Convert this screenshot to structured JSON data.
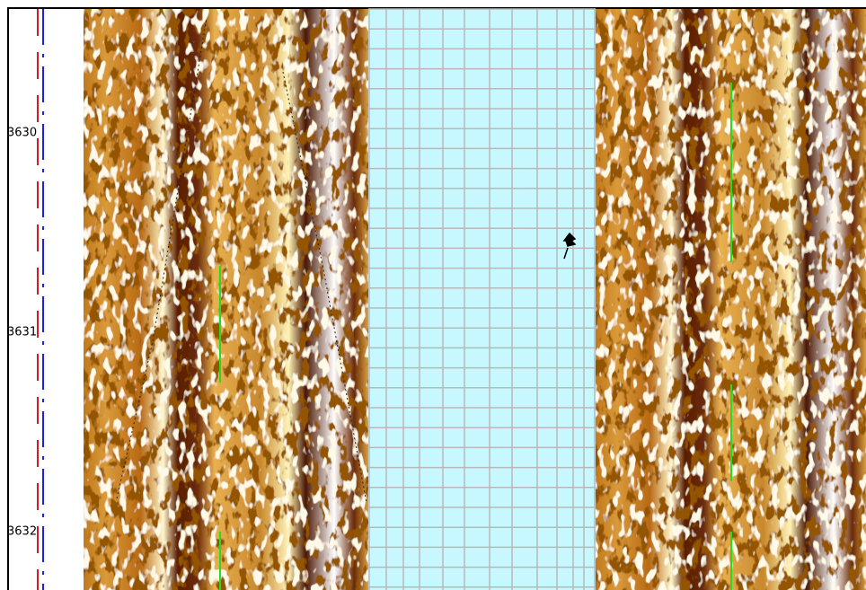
{
  "depth_track": {
    "labels": [
      "3630",
      "3631",
      "3632"
    ]
  }
}
